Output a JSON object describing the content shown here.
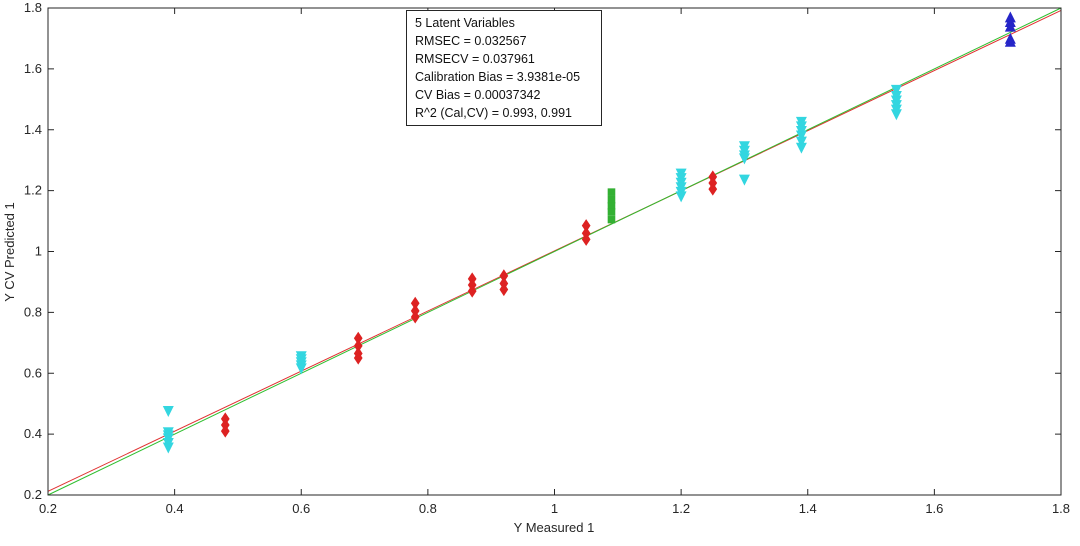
{
  "chart_data": {
    "type": "scatter",
    "title": "",
    "xlabel": "Y Measured 1",
    "ylabel": "Y CV Predicted 1",
    "xlim": [
      0.2,
      1.8
    ],
    "ylim": [
      0.2,
      1.8
    ],
    "xticks": [
      "0.2",
      "0.4",
      "0.6",
      "0.8",
      "1",
      "1.2",
      "1.4",
      "1.6",
      "1.8"
    ],
    "yticks": [
      "0.2",
      "0.4",
      "0.6",
      "0.8",
      "1",
      "1.2",
      "1.4",
      "1.6",
      "1.8"
    ],
    "grid": false,
    "annotation_lines": [
      "5 Latent Variables",
      "RMSEC = 0.032567",
      "RMSECV = 0.037961",
      "Calibration Bias = 3.9381e-05",
      "CV Bias = 0.00037342",
      "R^2 (Cal,CV) = 0.993, 0.991"
    ],
    "fit_lines": [
      {
        "name": "fit",
        "color": "#e03030",
        "x": [
          0.2,
          1.8
        ],
        "y": [
          0.212,
          1.792
        ]
      },
      {
        "name": "target",
        "color": "#2fbf2f",
        "x": [
          0.2,
          1.8
        ],
        "y": [
          0.2,
          1.8
        ]
      }
    ],
    "series": [
      {
        "name": "cyan-down-triangles",
        "marker": "triangle-down",
        "color": "#33d6e0",
        "points": [
          [
            0.39,
            0.475
          ],
          [
            0.39,
            0.405
          ],
          [
            0.39,
            0.395
          ],
          [
            0.39,
            0.385
          ],
          [
            0.39,
            0.37
          ],
          [
            0.39,
            0.355
          ],
          [
            0.6,
            0.655
          ],
          [
            0.6,
            0.645
          ],
          [
            0.6,
            0.635
          ],
          [
            0.6,
            0.625
          ],
          [
            0.6,
            0.615
          ],
          [
            1.2,
            1.255
          ],
          [
            1.2,
            1.24
          ],
          [
            1.2,
            1.225
          ],
          [
            1.2,
            1.21
          ],
          [
            1.2,
            1.195
          ],
          [
            1.2,
            1.18
          ],
          [
            1.3,
            1.345
          ],
          [
            1.3,
            1.33
          ],
          [
            1.3,
            1.315
          ],
          [
            1.3,
            1.305
          ],
          [
            1.3,
            1.235
          ],
          [
            1.39,
            1.425
          ],
          [
            1.39,
            1.41
          ],
          [
            1.39,
            1.395
          ],
          [
            1.39,
            1.38
          ],
          [
            1.39,
            1.36
          ],
          [
            1.39,
            1.34
          ],
          [
            1.54,
            1.53
          ],
          [
            1.54,
            1.51
          ],
          [
            1.54,
            1.495
          ],
          [
            1.54,
            1.48
          ],
          [
            1.54,
            1.465
          ],
          [
            1.54,
            1.45
          ]
        ]
      },
      {
        "name": "red-diamonds",
        "marker": "diamond",
        "color": "#dd2222",
        "points": [
          [
            0.48,
            0.45
          ],
          [
            0.48,
            0.43
          ],
          [
            0.48,
            0.41
          ],
          [
            0.69,
            0.715
          ],
          [
            0.69,
            0.69
          ],
          [
            0.69,
            0.665
          ],
          [
            0.69,
            0.65
          ],
          [
            0.78,
            0.83
          ],
          [
            0.78,
            0.805
          ],
          [
            0.78,
            0.785
          ],
          [
            0.87,
            0.91
          ],
          [
            0.87,
            0.89
          ],
          [
            0.87,
            0.87
          ],
          [
            0.92,
            0.92
          ],
          [
            0.92,
            0.895
          ],
          [
            0.92,
            0.875
          ],
          [
            1.05,
            1.085
          ],
          [
            1.05,
            1.06
          ],
          [
            1.05,
            1.04
          ],
          [
            1.25,
            1.245
          ],
          [
            1.25,
            1.225
          ],
          [
            1.25,
            1.205
          ]
        ]
      },
      {
        "name": "green-squares",
        "marker": "square",
        "color": "#33b033",
        "points": [
          [
            1.09,
            1.195
          ],
          [
            1.09,
            1.17
          ],
          [
            1.09,
            1.15
          ],
          [
            1.09,
            1.13
          ],
          [
            1.09,
            1.105
          ]
        ]
      },
      {
        "name": "blue-up-triangles",
        "marker": "triangle-up",
        "color": "#2525c8",
        "points": [
          [
            1.72,
            1.77
          ],
          [
            1.72,
            1.755
          ],
          [
            1.72,
            1.74
          ],
          [
            1.72,
            1.7
          ],
          [
            1.72,
            1.69
          ]
        ]
      }
    ]
  }
}
